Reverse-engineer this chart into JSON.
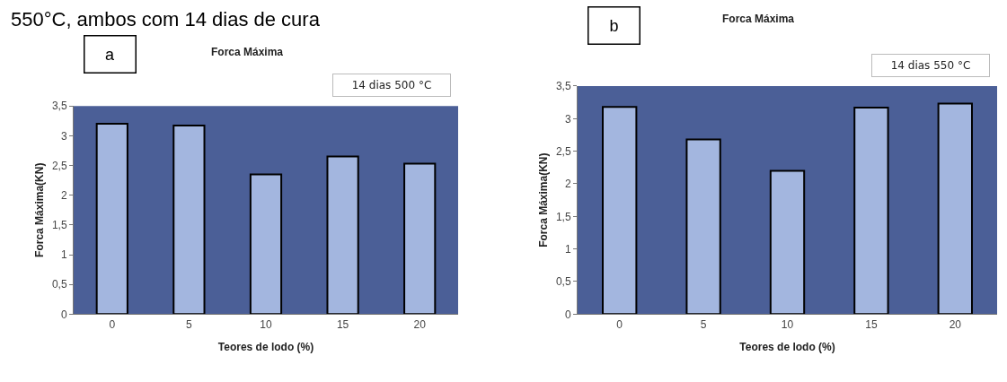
{
  "chart_data": [
    {
      "type": "bar",
      "title": "Forca Máxima",
      "xlabel": "Teores de lodo (%)",
      "ylabel": "Forca Máxima(KN)",
      "categories": [
        "0",
        "5",
        "10",
        "15",
        "20"
      ],
      "values": [
        3.2,
        3.17,
        2.35,
        2.65,
        2.53
      ],
      "color": "#a3b6df",
      "ylim": [
        0,
        3.5
      ],
      "yticks": [
        0,
        {
          "value": 0.5,
          "label": "0,5"
        },
        1,
        {
          "value": 1.5,
          "label": "1,5"
        },
        2,
        {
          "value": 2.5,
          "label": "2,5"
        },
        3,
        {
          "value": 3.5,
          "label": "3,5"
        }
      ],
      "annotations": [
        "a",
        "14 dias 500 °C",
        "550°C, ambos com 14 dias de cura"
      ]
    },
    {
      "type": "bar",
      "title": "Forca Máxima",
      "xlabel": "Teores de lodo (%)",
      "ylabel": "Forca Máxima(KN)",
      "categories": [
        "0",
        "5",
        "10",
        "15",
        "20"
      ],
      "values": [
        3.18,
        2.68,
        2.2,
        3.17,
        3.23
      ],
      "color": "#a3b6df",
      "ylim": [
        0,
        3.5
      ],
      "yticks": [
        0,
        {
          "value": 0.5,
          "label": "0,5"
        },
        1,
        {
          "value": 1.5,
          "label": "1,5"
        },
        2,
        {
          "value": 2.5,
          "label": "2,5"
        },
        3,
        {
          "value": 3.5,
          "label": "3,5"
        }
      ],
      "annotations": [
        "b",
        "14 dias 550 °C"
      ]
    }
  ]
}
